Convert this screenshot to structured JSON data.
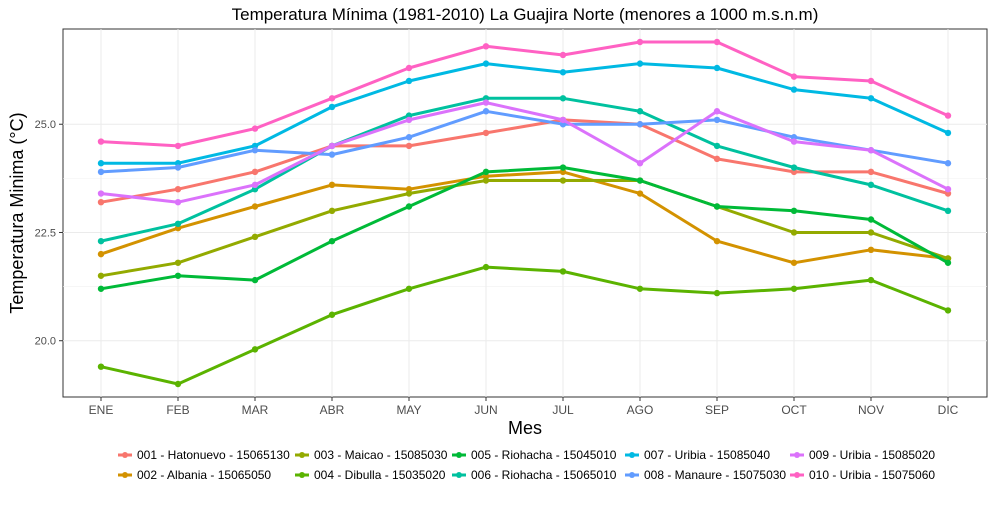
{
  "chart_data": {
    "type": "line",
    "title": "Temperatura Mínima (1981-2010) La Guajira Norte (menores a 1000 m.s.n.m)",
    "xlabel": "Mes",
    "ylabel": "Temperatura Minima (°C)",
    "categories": [
      "ENE",
      "FEB",
      "MAR",
      "ABR",
      "MAY",
      "JUN",
      "JUL",
      "AGO",
      "SEP",
      "OCT",
      "NOV",
      "DIC"
    ],
    "ylim": [
      18.7,
      27.2
    ],
    "yticks": [
      20.0,
      22.5,
      25.0
    ],
    "ytick_labels": [
      "20.0",
      "22.5",
      "25.0"
    ],
    "grid": true,
    "legend_position": "bottom",
    "series": [
      {
        "name": "001 - Hatonuevo - 15065130",
        "color": "#F8766D",
        "values": [
          23.2,
          23.5,
          23.9,
          24.5,
          24.5,
          24.8,
          25.1,
          25.0,
          24.2,
          23.9,
          23.9,
          23.4
        ]
      },
      {
        "name": "002 - Albania - 15065050",
        "color": "#D39200",
        "values": [
          22.0,
          22.6,
          23.1,
          23.6,
          23.5,
          23.8,
          23.9,
          23.4,
          22.3,
          21.8,
          22.1,
          21.9
        ]
      },
      {
        "name": "003 - Maicao - 15085030",
        "color": "#93AA00",
        "values": [
          21.5,
          21.8,
          22.4,
          23.0,
          23.4,
          23.7,
          23.7,
          23.7,
          23.1,
          22.5,
          22.5,
          21.9
        ]
      },
      {
        "name": "004 - Dibulla - 15035020",
        "color": "#5BB300",
        "values": [
          19.4,
          19.0,
          19.8,
          20.6,
          21.2,
          21.7,
          21.6,
          21.2,
          21.1,
          21.2,
          21.4,
          20.7
        ]
      },
      {
        "name": "005 - Riohacha - 15045010",
        "color": "#00BA38",
        "values": [
          21.2,
          21.5,
          21.4,
          22.3,
          23.1,
          23.9,
          24.0,
          23.7,
          23.1,
          23.0,
          22.8,
          21.8
        ]
      },
      {
        "name": "006 - Riohacha - 15065010",
        "color": "#00C19F",
        "values": [
          22.3,
          22.7,
          23.5,
          24.5,
          25.2,
          25.6,
          25.6,
          25.3,
          24.5,
          24.0,
          23.6,
          23.0
        ]
      },
      {
        "name": "007 - Uribia - 15085040",
        "color": "#00B9E3",
        "values": [
          24.1,
          24.1,
          24.5,
          25.4,
          26.0,
          26.4,
          26.2,
          26.4,
          26.3,
          25.8,
          25.6,
          24.8
        ]
      },
      {
        "name": "008 - Manaure - 15075030",
        "color": "#619CFF",
        "values": [
          23.9,
          24.0,
          24.4,
          24.3,
          24.7,
          25.3,
          25.0,
          25.0,
          25.1,
          24.7,
          24.4,
          24.1
        ]
      },
      {
        "name": "009 - Uribia - 15085020",
        "color": "#DB72FB",
        "values": [
          23.4,
          23.2,
          23.6,
          24.5,
          25.1,
          25.5,
          25.1,
          24.1,
          25.3,
          24.6,
          24.4,
          23.5
        ]
      },
      {
        "name": "010 - Uribia - 15075060",
        "color": "#FF61C3",
        "values": [
          24.6,
          24.5,
          24.9,
          25.6,
          26.3,
          26.8,
          26.6,
          26.9,
          26.9,
          26.1,
          26.0,
          25.2
        ]
      }
    ]
  }
}
